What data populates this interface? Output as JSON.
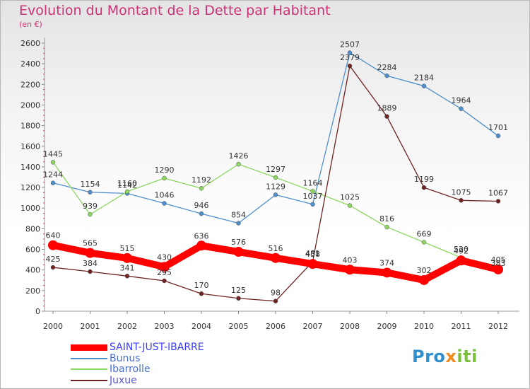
{
  "title": "Evolution du Montant de la Dette par Habitant",
  "subtitle": "(en €)",
  "logo": {
    "part1": "Pro",
    "part2": "x",
    "part3": "iti"
  },
  "chart_data": {
    "type": "line",
    "title": "Evolution du Montant de la Dette par Habitant",
    "ylabel": "(en €)",
    "xlabel": "",
    "x": [
      "2000",
      "2001",
      "2002",
      "2003",
      "2004",
      "2005",
      "2006",
      "2007",
      "2008",
      "2009",
      "2010",
      "2011",
      "2012"
    ],
    "ylim": [
      0,
      2600
    ],
    "yticks": [
      0,
      200,
      400,
      600,
      800,
      1000,
      1200,
      1400,
      1600,
      1800,
      2000,
      2200,
      2400,
      2600
    ],
    "grid": false,
    "legend_position": "bottom-left",
    "series": [
      {
        "name": "SAINT-JUST-IBARRE",
        "color": "#ff0000",
        "values": [
          640,
          565,
          515,
          430,
          636,
          576,
          516,
          458,
          403,
          374,
          302,
          492,
          405
        ]
      },
      {
        "name": "Bunus",
        "color": "#4f8fcc",
        "values": [
          1244,
          1154,
          1142,
          1046,
          946,
          854,
          1129,
          1037,
          2507,
          2284,
          2184,
          1964,
          1701
        ]
      },
      {
        "name": "Ibarrolle",
        "color": "#8cd660",
        "values": [
          1445,
          939,
          1160,
          1290,
          1192,
          1426,
          1297,
          1164,
          1025,
          816,
          669,
          520,
          383
        ]
      },
      {
        "name": "Juxue",
        "color": "#6e2323",
        "values": [
          425,
          384,
          341,
          295,
          170,
          125,
          98,
          481,
          2379,
          1889,
          1199,
          1075,
          1067
        ]
      }
    ]
  }
}
